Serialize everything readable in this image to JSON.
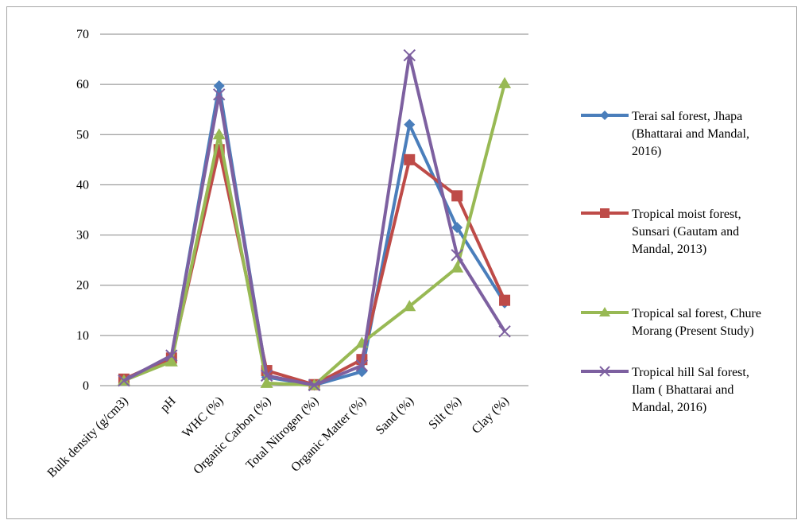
{
  "chart_data": {
    "type": "line",
    "title": "",
    "xlabel": "",
    "ylabel": "",
    "ylim": [
      0,
      70
    ],
    "yticks": [
      0,
      10,
      20,
      30,
      40,
      50,
      60,
      70
    ],
    "grid": true,
    "legend_position": "right",
    "categories": [
      "Bulk density (g/cm3)",
      "pH",
      "WHC (%)",
      "Organic Carbon (%)",
      "Total Nitrogen (%)",
      "Organic Matter (%)",
      "Sand (%)",
      "Silt (%)",
      "Clay (%)"
    ],
    "series": [
      {
        "name": "Terai sal forest, Jhapa (Bhattarai and Mandal, 2016)",
        "legend_lines": [
          "Terai sal forest, Jhapa",
          "(Bhattarai and Mandal,",
          "2016)"
        ],
        "color": "#4a7ebb",
        "marker": "diamond",
        "values": [
          1.2,
          5.7,
          59.7,
          1.7,
          0.1,
          2.8,
          52,
          31.5,
          16.5
        ]
      },
      {
        "name": "Tropical moist forest, Sunsari (Gautam and Mandal, 2013)",
        "legend_lines": [
          "Tropical moist forest,",
          "Sunsari (Gautam and",
          "Mandal, 2013)"
        ],
        "color": "#be4b48",
        "marker": "square",
        "values": [
          1.3,
          5.5,
          47,
          3,
          0.2,
          5.2,
          45,
          37.8,
          17
        ]
      },
      {
        "name": "Tropical sal forest, Chure Morang (Present Study)",
        "legend_lines": [
          "Tropical sal forest, Chure",
          "Morang (Present Study)"
        ],
        "color": "#98b954",
        "marker": "triangle",
        "values": [
          1,
          4.8,
          50,
          0.5,
          0.1,
          8.5,
          15.8,
          23.5,
          60.2
        ]
      },
      {
        "name": "Tropical hill Sal forest, Ilam ( Bhattarai and Mandal, 2016)",
        "legend_lines": [
          "Tropical hill Sal forest,",
          "Ilam ( Bhattarai and",
          "Mandal, 2016)"
        ],
        "color": "#7d60a0",
        "marker": "x",
        "values": [
          1,
          6,
          58,
          2,
          0.1,
          4,
          65.8,
          26,
          10.8
        ]
      }
    ]
  }
}
